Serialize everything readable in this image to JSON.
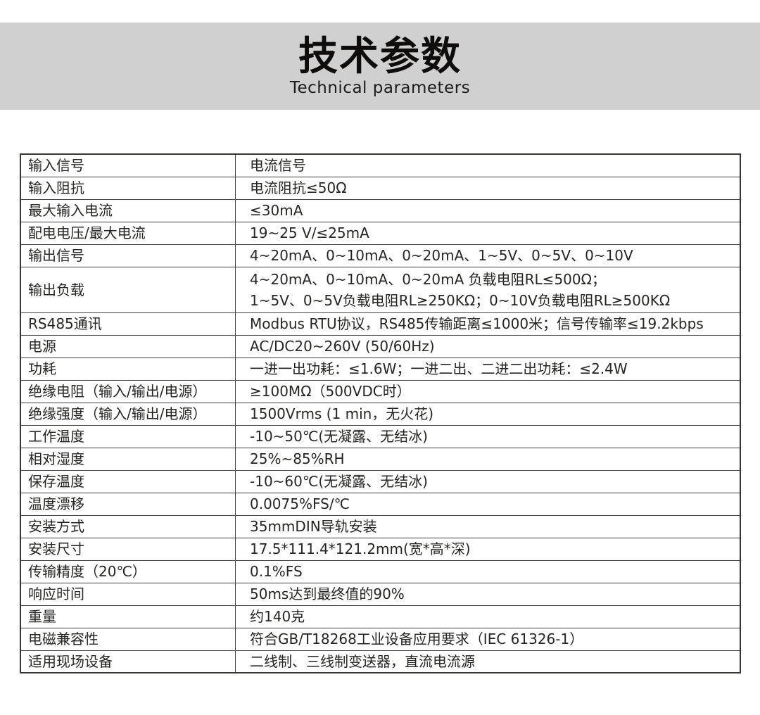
{
  "header": {
    "title": "技术参数",
    "subtitle": "Technical parameters"
  },
  "colors": {
    "band_background": "#d1d0d0",
    "table_border": "#383733",
    "text": "#262522",
    "page_background": "#ffffff"
  },
  "table": {
    "rows": [
      {
        "label": "输入信号",
        "value": "电流信号"
      },
      {
        "label": "输入阻抗",
        "value": "电流阻抗≤50Ω"
      },
      {
        "label": "最大输入电流",
        "value": "≤30mA"
      },
      {
        "label": "配电电压/最大电流",
        "value": "19~25 V/≤25mA"
      },
      {
        "label": "输出信号",
        "value": "4~20mA、0~10mA、0~20mA、1~5V、0~5V、0~10V"
      },
      {
        "label": "输出负载",
        "value": "4~20mA、0~10mA、0~20mA 负载电阻RL≤500Ω；\n1~5V、0~5V负载电阻RL≥250KΩ；0~10V负载电阻RL≥500KΩ"
      },
      {
        "label": "RS485通讯",
        "value": "Modbus RTU协议，RS485传输距离≤1000米；信号传输率≤19.2kbps"
      },
      {
        "label": "电源",
        "value": "AC/DC20~260V (50/60Hz)"
      },
      {
        "label": "功耗",
        "value": "一进一出功耗：≤1.6W；一进二出、二进二出功耗：≤2.4W"
      },
      {
        "label": "绝缘电阻（输入/输出/电源）",
        "value": "≥100MΩ（500VDC时）"
      },
      {
        "label": "绝缘强度（输入/输出/电源）",
        "value": "1500Vrms (1 min，无火花)"
      },
      {
        "label": "工作温度",
        "value": "-10~50℃(无凝露、无结冰)"
      },
      {
        "label": "相对湿度",
        "value": "25%~85%RH"
      },
      {
        "label": "保存温度",
        "value": "-10~60℃(无凝露、无结冰)"
      },
      {
        "label": "温度漂移",
        "value": "0.0075%FS/℃"
      },
      {
        "label": "安装方式",
        "value": "35mmDIN导轨安装"
      },
      {
        "label": "安装尺寸",
        "value": "17.5*111.4*121.2mm(宽*高*深)"
      },
      {
        "label": "传输精度（20℃）",
        "value": "0.1%FS"
      },
      {
        "label": "响应时间",
        "value": "50ms达到最终值的90%"
      },
      {
        "label": "重量",
        "value": "约140克"
      },
      {
        "label": "电磁兼容性",
        "value": "符合GB/T18268工业设备应用要求（IEC 61326-1）"
      },
      {
        "label": "适用现场设备",
        "value": "二线制、三线制变送器，直流电流源"
      }
    ]
  }
}
